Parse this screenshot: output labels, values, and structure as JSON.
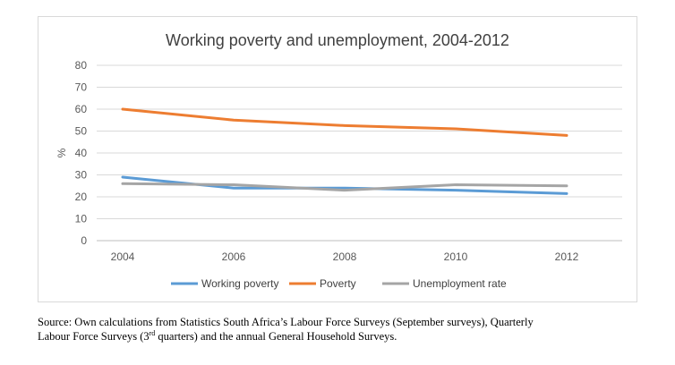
{
  "chart_data": {
    "type": "line",
    "title": "Working poverty and unemployment, 2004-2012",
    "ylabel": "%",
    "xlabel": "",
    "categories": [
      "2004",
      "2006",
      "2008",
      "2010",
      "2012"
    ],
    "ylim": [
      0,
      80
    ],
    "yticks": [
      "0",
      "10",
      "20",
      "30",
      "40",
      "50",
      "60",
      "70",
      "80"
    ],
    "grid": "horizontal",
    "legend_position": "bottom",
    "series": [
      {
        "name": "Working poverty",
        "color": "#5b9bd5",
        "values": [
          29,
          24,
          24,
          23,
          21.5
        ]
      },
      {
        "name": "Poverty",
        "color": "#ed7d31",
        "values": [
          60,
          55,
          52.5,
          51,
          48
        ]
      },
      {
        "name": "Unemployment rate",
        "color": "#a5a5a5",
        "values": [
          26,
          25.5,
          23,
          25.5,
          25
        ]
      }
    ]
  },
  "source": {
    "line1": "Source: Own calculations from Statistics South Africa’s Labour Force Surveys (September surveys), Quarterly",
    "line2_a": "Labour Force Surveys (3",
    "line2_sup": "rd",
    "line2_b": " quarters) and the annual General Household Surveys."
  }
}
